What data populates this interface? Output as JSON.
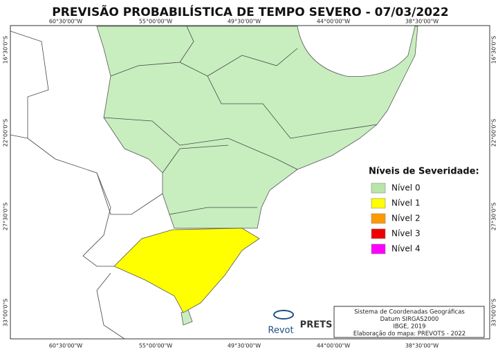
{
  "header": {
    "title": "PREVISÃO PROBABILÍSTICA DE TEMPO SEVERO - 07/03/2022"
  },
  "map": {
    "lon_labels": [
      "60°30'00\"W",
      "55°00'00\"W",
      "49°30'00\"W",
      "44°00'00\"W",
      "38°30'00\"W"
    ],
    "lat_labels": [
      "16°30'0\"S",
      "22°00'0\"S",
      "27°30'0\"S",
      "33°00'0\"S"
    ]
  },
  "legend": {
    "title": "Níveis de Severidade:",
    "items": [
      {
        "label": "Nível 0",
        "color": "#b8e6a8"
      },
      {
        "label": "Nível 1",
        "color": "#ffff00"
      },
      {
        "label": "Nível 2",
        "color": "#ff9900"
      },
      {
        "label": "Nível 3",
        "color": "#ee0000"
      },
      {
        "label": "Nível 4",
        "color": "#ff00ff"
      }
    ]
  },
  "info": {
    "lines": [
      "Sistema de Coordenadas Geográficas",
      "Datum SIRGAS2000",
      "IBGE, 2019",
      "Elaboração do mapa: PREVOTS - 2022"
    ]
  },
  "logos": {
    "left": "Revot",
    "right": "PRETS"
  }
}
